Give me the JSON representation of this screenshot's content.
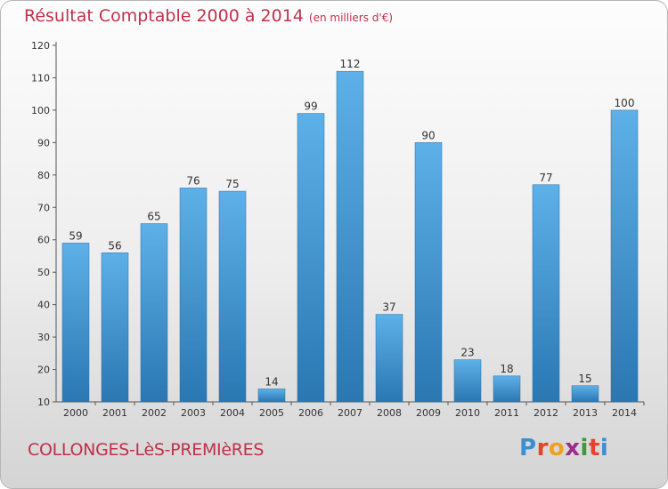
{
  "title": "Résultat Comptable 2000 à 2014",
  "unit": "(en milliers d'€)",
  "commune": "COLLONGES-LèS-PREMIèRES",
  "logo_letters": [
    "P",
    "r",
    "o",
    "x",
    "i",
    "t",
    "i"
  ],
  "colors": {
    "title": "#c0304a",
    "bar_light": "#5eb0e8",
    "bar_dark": "#2a77b2"
  },
  "chart_data": {
    "type": "bar",
    "categories": [
      "2000",
      "2001",
      "2002",
      "2003",
      "2004",
      "2005",
      "2006",
      "2007",
      "2008",
      "2009",
      "2010",
      "2011",
      "2012",
      "2013",
      "2014"
    ],
    "values": [
      59,
      56,
      65,
      76,
      75,
      14,
      99,
      112,
      37,
      90,
      23,
      18,
      77,
      15,
      100
    ],
    "ylim": [
      10,
      120
    ],
    "yticks": [
      10,
      20,
      30,
      40,
      50,
      60,
      70,
      80,
      90,
      100,
      110,
      120
    ],
    "grid": false,
    "data_labels": true
  }
}
